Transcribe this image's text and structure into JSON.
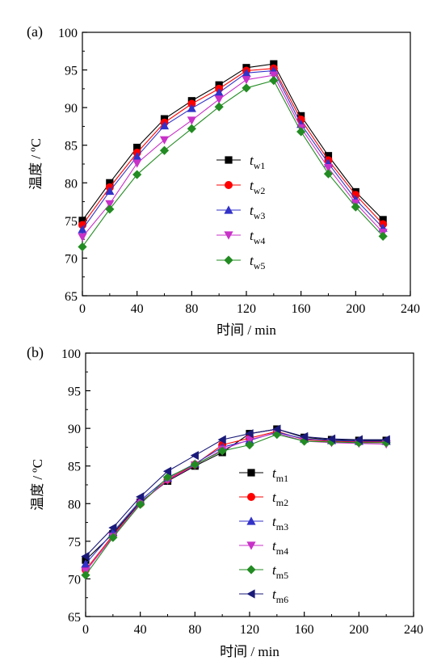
{
  "chart_data": [
    {
      "type": "line",
      "panel_label": "(a)",
      "xlabel": "时间 / min",
      "ylabel": "温度 / ºC",
      "xlim": [
        0,
        240
      ],
      "ylim": [
        65,
        100
      ],
      "x_ticks": [
        0,
        40,
        80,
        120,
        160,
        200,
        240
      ],
      "y_ticks": [
        65,
        70,
        75,
        80,
        85,
        90,
        95,
        100
      ],
      "grid": false,
      "legend_position": "center-right",
      "x": [
        0,
        20,
        40,
        60,
        80,
        100,
        120,
        140,
        160,
        180,
        200,
        220
      ],
      "series": [
        {
          "name": "t",
          "subscript": "w1",
          "color": "#000000",
          "marker": "square",
          "values": [
            75.0,
            80.0,
            84.7,
            88.5,
            90.9,
            93.0,
            95.3,
            95.8,
            88.9,
            83.6,
            78.8,
            75.1
          ]
        },
        {
          "name": "t",
          "subscript": "w2",
          "color": "#ff0000",
          "marker": "circle",
          "values": [
            74.4,
            79.4,
            84.0,
            88.0,
            90.5,
            92.5,
            94.9,
            95.2,
            88.4,
            83.0,
            78.4,
            74.5
          ]
        },
        {
          "name": "t",
          "subscript": "w3",
          "color": "#3232c8",
          "marker": "triangle-up",
          "values": [
            73.8,
            78.9,
            83.5,
            87.6,
            89.9,
            92.0,
            94.6,
            94.9,
            87.8,
            82.6,
            77.8,
            74.0
          ]
        },
        {
          "name": "t",
          "subscript": "w4",
          "color": "#c832c8",
          "marker": "triangle-down",
          "values": [
            72.8,
            77.2,
            82.6,
            85.7,
            88.3,
            91.1,
            93.7,
            94.3,
            87.3,
            82.0,
            77.3,
            73.4
          ]
        },
        {
          "name": "t",
          "subscript": "w5",
          "color": "#228b22",
          "marker": "diamond",
          "values": [
            71.5,
            76.5,
            81.1,
            84.3,
            87.2,
            90.1,
            92.6,
            93.6,
            86.8,
            81.2,
            76.8,
            72.9
          ]
        }
      ]
    },
    {
      "type": "line",
      "panel_label": "(b)",
      "xlabel": "时间 / min",
      "ylabel": "温度 / ºC",
      "xlim": [
        0,
        240
      ],
      "ylim": [
        65,
        100
      ],
      "x_ticks": [
        0,
        40,
        80,
        120,
        160,
        200,
        240
      ],
      "y_ticks": [
        65,
        70,
        75,
        80,
        85,
        90,
        95,
        100
      ],
      "grid": false,
      "legend_position": "center-right",
      "x": [
        0,
        20,
        40,
        60,
        80,
        100,
        120,
        140,
        160,
        180,
        200,
        220
      ],
      "series": [
        {
          "name": "t",
          "subscript": "m1",
          "color": "#000000",
          "marker": "square",
          "values": [
            72.5,
            76.0,
            80.2,
            83.0,
            85.0,
            86.8,
            89.3,
            89.9,
            88.8,
            88.5,
            88.4,
            88.4
          ]
        },
        {
          "name": "t",
          "subscript": "m2",
          "color": "#ff0000",
          "marker": "circle",
          "values": [
            71.2,
            75.8,
            80.0,
            83.2,
            85.2,
            87.8,
            88.7,
            89.6,
            88.5,
            88.3,
            88.2,
            88.2
          ]
        },
        {
          "name": "t",
          "subscript": "m3",
          "color": "#3232c8",
          "marker": "triangle-up",
          "values": [
            72.0,
            76.2,
            80.4,
            83.4,
            85.3,
            87.5,
            88.4,
            89.5,
            88.6,
            88.4,
            88.3,
            88.3
          ]
        },
        {
          "name": "t",
          "subscript": "m4",
          "color": "#c832c8",
          "marker": "triangle-down",
          "values": [
            71.0,
            75.6,
            80.1,
            83.1,
            85.1,
            87.2,
            88.5,
            89.4,
            88.3,
            88.1,
            88.0,
            87.9
          ]
        },
        {
          "name": "t",
          "subscript": "m5",
          "color": "#228b22",
          "marker": "diamond",
          "values": [
            70.5,
            75.5,
            79.9,
            83.5,
            85.2,
            87.0,
            87.8,
            89.2,
            88.3,
            88.2,
            88.1,
            88.1
          ]
        },
        {
          "name": "t",
          "subscript": "m6",
          "color": "#1a1a7a",
          "marker": "triangle-left",
          "values": [
            73.0,
            76.8,
            80.9,
            84.3,
            86.4,
            88.5,
            89.3,
            89.9,
            88.9,
            88.6,
            88.5,
            88.5
          ]
        }
      ]
    }
  ]
}
